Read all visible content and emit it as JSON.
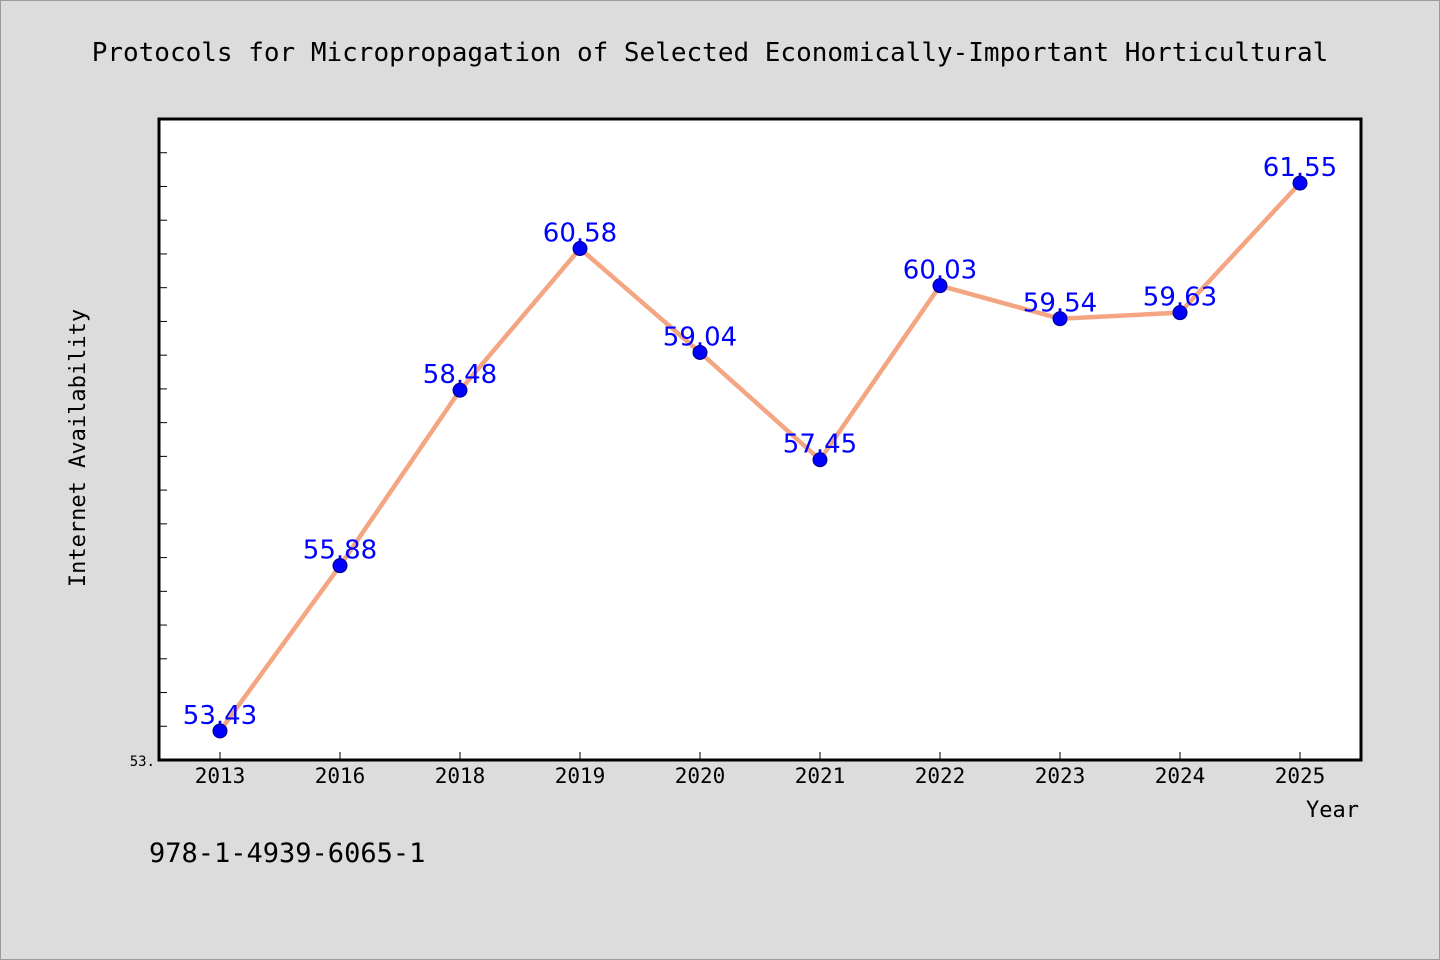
{
  "chart_data": {
    "type": "line",
    "title": "Protocols for Micropropagation of Selected Economically-Important Horticultural",
    "xlabel": "Year",
    "ylabel": "Internet Availability",
    "categories": [
      "2013",
      "2016",
      "2018",
      "2019",
      "2020",
      "2021",
      "2022",
      "2023",
      "2024",
      "2025"
    ],
    "series": [
      {
        "values": [
          53.43,
          55.88,
          58.48,
          60.58,
          59.04,
          57.45,
          60.03,
          59.54,
          59.63,
          61.55
        ],
        "labels": [
          "53.43",
          "55.88",
          "58.48",
          "60.58",
          "59.04",
          "57.45",
          "60.03",
          "59.54",
          "59.63",
          "61.55"
        ]
      }
    ],
    "ylim": [
      53.0,
      62.5
    ],
    "y_tick_label": "53.",
    "grid": false,
    "legend": "none",
    "colors": {
      "line": "#f4a582",
      "marker": "#0000ff",
      "data_label": "#0000ff",
      "plot_background": "#ffffff",
      "figure_background": "#dcdcdc"
    }
  },
  "footnote": "978-1-4939-6065-1"
}
